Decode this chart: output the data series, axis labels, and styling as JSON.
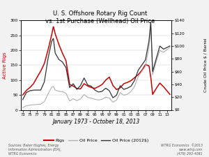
{
  "title": "U. S. Offshore Rotary Rig Count\nvs. 1st Purchase (Wellhead) Oil Price",
  "xlabel": "January 1973 - October 18, 2013",
  "ylabel_left": "Active Rigs",
  "ylabel_right": "Crude Oil Price $ / Barrel",
  "bg_color": "#f2f2f2",
  "plot_bg": "#ffffff",
  "rig_color": "#cc0000",
  "oil_nominal_color": "#b0b0b0",
  "oil_real_color": "#333333",
  "ylim_left": [
    0,
    300
  ],
  "ylim_right": [
    0,
    140
  ],
  "yticks_left": [
    0,
    50,
    100,
    150,
    200,
    250,
    300
  ],
  "yticks_right": [
    0,
    20,
    40,
    60,
    80,
    100,
    120,
    140
  ],
  "xtick_labels": [
    "73",
    "75",
    "77",
    "79",
    "81",
    "83",
    "85",
    "87",
    "89",
    "91",
    "93",
    "95",
    "97",
    "99",
    "01",
    "03",
    "05",
    "07",
    "09",
    "11",
    "13"
  ],
  "xtick_positions": [
    1973,
    1975,
    1977,
    1979,
    1981,
    1983,
    1985,
    1987,
    1989,
    1991,
    1993,
    1995,
    1997,
    1999,
    2001,
    2003,
    2005,
    2007,
    2009,
    2011,
    2013
  ],
  "source_text": "Sources: Baker Hughes, Energy\nInformation Administration (EIA),\nWTRG Economics",
  "credit_text": "WTRG Economics  ©2013\nwww.wtrg.com\n(479) 293-4081",
  "legend_entries": [
    "Rigs",
    "Oil Price",
    "Oil Price (2012$)"
  ],
  "years": [
    1973,
    1974,
    1975,
    1976,
    1977,
    1978,
    1979,
    1980,
    1981,
    1981.5,
    1982,
    1983,
    1984,
    1985,
    1986,
    1987,
    1988,
    1989,
    1990,
    1991,
    1992,
    1993,
    1994,
    1995,
    1996,
    1997,
    1998,
    1999,
    2000,
    2001,
    2002,
    2003,
    2004,
    2005,
    2006,
    2007,
    2008,
    2008.5,
    2009,
    2010,
    2011,
    2012,
    2013.8
  ],
  "rigs": [
    50,
    65,
    75,
    88,
    110,
    130,
    155,
    200,
    250,
    280,
    255,
    220,
    190,
    165,
    85,
    80,
    72,
    70,
    88,
    80,
    75,
    72,
    78,
    85,
    100,
    110,
    82,
    68,
    74,
    88,
    92,
    98,
    108,
    118,
    132,
    152,
    148,
    110,
    52,
    72,
    90,
    78,
    52
  ],
  "oil_nominal": [
    3.5,
    6.5,
    7.5,
    8.0,
    8.5,
    9.0,
    13.0,
    25.0,
    35.0,
    37.0,
    31.0,
    29.0,
    28.5,
    26.0,
    14.0,
    17.5,
    14.5,
    17.0,
    24.0,
    19.5,
    18.5,
    16.5,
    15.5,
    16.5,
    20.0,
    18.5,
    12.0,
    15.5,
    27.0,
    23.0,
    24.5,
    28.5,
    37.0,
    52.0,
    60.0,
    68.0,
    98.0,
    133.0,
    55.0,
    76.0,
    93.0,
    90.0,
    98.0
  ],
  "oil_real": [
    16,
    27,
    30,
    31,
    31,
    31,
    44,
    80,
    107,
    112,
    89,
    79,
    75,
    66,
    35,
    41,
    32,
    38,
    50,
    39,
    37,
    31,
    28,
    29,
    34,
    30,
    19,
    23,
    38,
    32,
    34,
    37,
    46,
    62,
    70,
    78,
    108,
    138,
    60,
    80,
    100,
    95,
    100
  ]
}
